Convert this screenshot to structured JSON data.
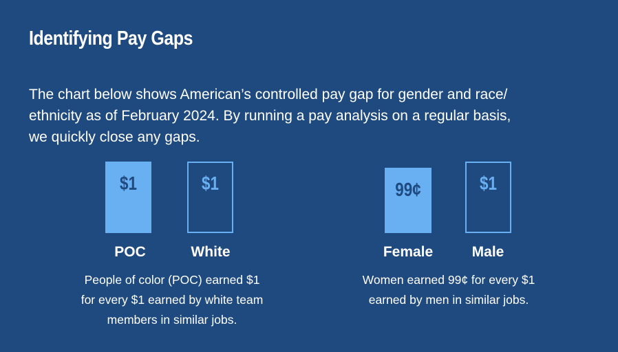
{
  "header": {
    "title": "Identifying Pay Gaps"
  },
  "intro": {
    "lines": [
      "The chart below shows American’s controlled pay gap for gender and race/",
      "ethnicity as of February 2024. By running a pay analysis on a regular basis,",
      "we quickly close any gaps."
    ]
  },
  "groups": [
    {
      "items": [
        {
          "label": "POC",
          "value_label": "$1"
        },
        {
          "label": "White",
          "value_label": "$1"
        }
      ],
      "description": [
        "People of color (POC) earned $1",
        "for every $1 earned by white team",
        "members in similar jobs."
      ]
    },
    {
      "items": [
        {
          "label": "Female",
          "value_label": "99¢"
        },
        {
          "label": "Male",
          "value_label": "$1"
        }
      ],
      "description": [
        "Women earned 99¢ for every $1",
        "earned by men in similar jobs."
      ]
    }
  ]
}
